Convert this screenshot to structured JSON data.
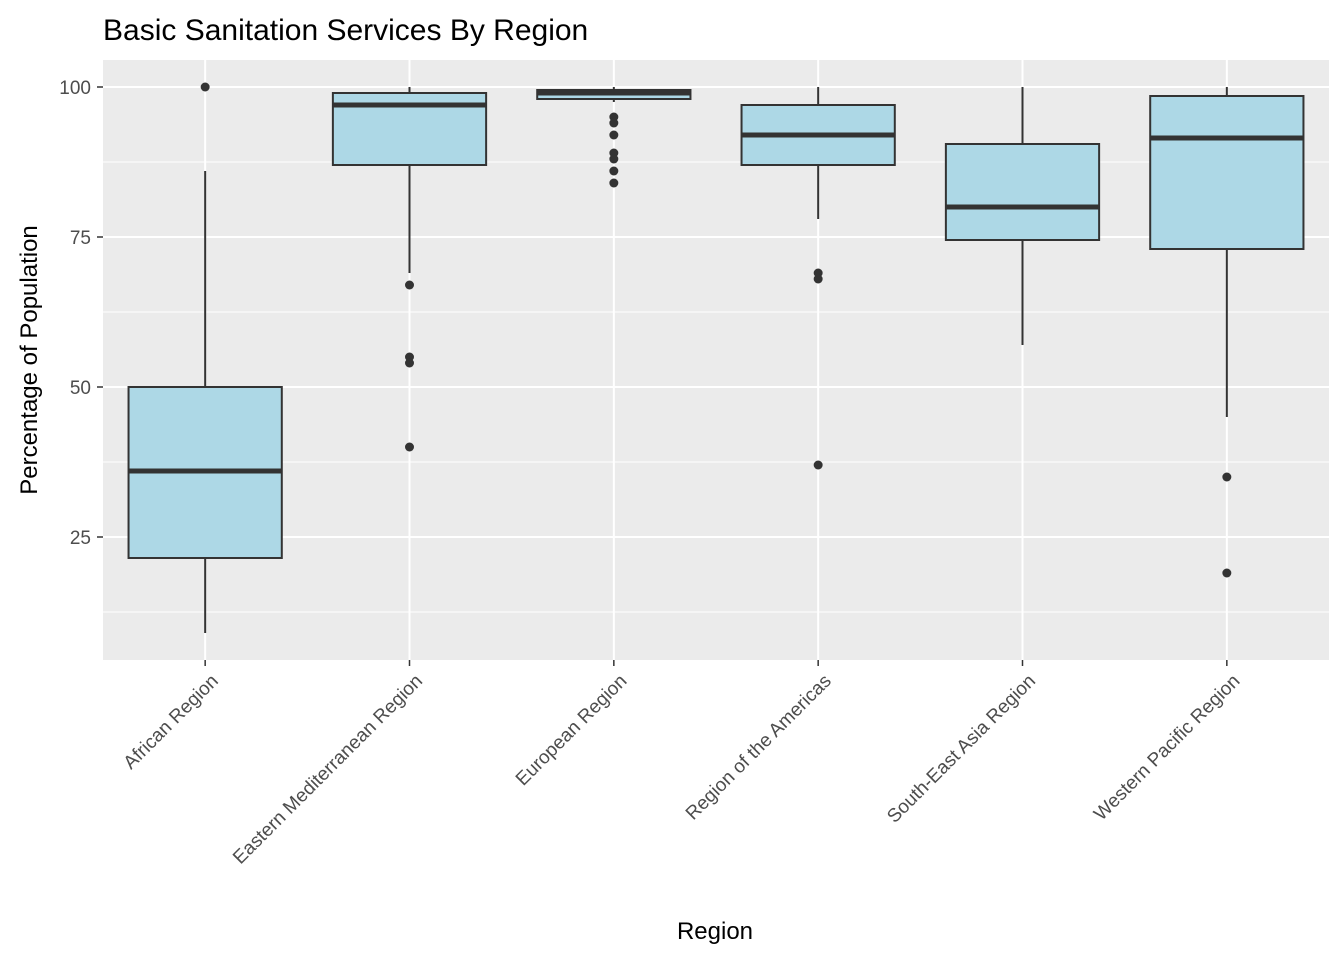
{
  "chart_data": {
    "type": "boxplot",
    "title": "Basic Sanitation Services By Region",
    "xlabel": "Region",
    "ylabel": "Percentage of Population",
    "ylim": [
      4.5,
      104.5
    ],
    "yticks": [
      25,
      50,
      75,
      100
    ],
    "grid": true,
    "legend": "none",
    "colors": {
      "panel": "#EBEBEB",
      "grid": "#FFFFFF",
      "box_fill": "#ADD8E6",
      "box_stroke": "#333333",
      "tick_text": "#4D4D4D"
    },
    "categories": [
      "African Region",
      "Eastern Mediterranean Region",
      "European Region",
      "Region of the Americas",
      "South-East Asia Region",
      "Western Pacific Region"
    ],
    "boxes": [
      {
        "min": 9,
        "q1": 21.5,
        "median": 36,
        "q3": 50,
        "max": 86,
        "outliers": [
          100
        ]
      },
      {
        "min": 69,
        "q1": 87,
        "median": 97,
        "q3": 99,
        "max": 100,
        "outliers": [
          67,
          55,
          54,
          40
        ]
      },
      {
        "min": 97.5,
        "q1": 98,
        "median": 99,
        "q3": 99.5,
        "max": 100,
        "outliers": [
          95,
          94,
          92,
          89,
          88,
          86,
          84
        ]
      },
      {
        "min": 78,
        "q1": 87,
        "median": 92,
        "q3": 97,
        "max": 100,
        "outliers": [
          69,
          68,
          37
        ]
      },
      {
        "min": 57,
        "q1": 74.5,
        "median": 80,
        "q3": 90.5,
        "max": 100,
        "outliers": []
      },
      {
        "min": 45,
        "q1": 73,
        "median": 91.5,
        "q3": 98.5,
        "max": 100,
        "outliers": [
          35,
          19
        ]
      }
    ]
  }
}
